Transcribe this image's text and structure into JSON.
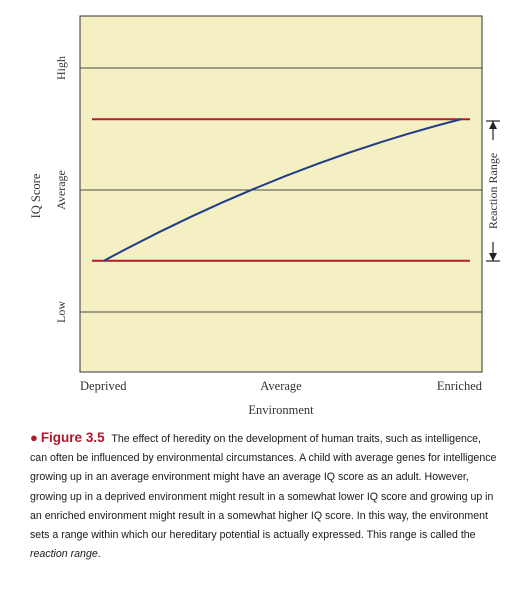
{
  "chart_data": {
    "type": "line",
    "xlabel": "Environment",
    "ylabel": "IQ Score",
    "x_categories": [
      "Deprived",
      "Average",
      "Enriched"
    ],
    "y_categories": [
      "Low",
      "Average",
      "High"
    ],
    "series": [
      {
        "values": [
          {
            "x": "Deprived",
            "y": -0.58
          },
          {
            "x": "Average",
            "y": 0.1
          },
          {
            "x": "Enriched",
            "y": 0.58
          }
        ]
      }
    ],
    "reference_lines": [
      0.58,
      -0.58
    ],
    "bracket_label": "Reaction Range",
    "colors": {
      "plot_background": "#f5f0c4",
      "curve": "#1f3e86",
      "reference_lines": "#b01e2e",
      "gridlines": "#4a4a3c"
    }
  },
  "caption": {
    "bullet": "●",
    "figure_label": "Figure 3.5",
    "text": "The effect of heredity on the development of human traits, such as intelligence, can often be influenced by environmental circumstances. A child with average genes for intelligence growing up in an average environment might have an average IQ score as an adult. However, growing up in a deprived environment might result in a somewhat lower IQ score and growing up in an enriched environment might result in a somewhat higher IQ score. In this way, the environment sets a range within which our hereditary potential is actually expressed. This range is called the",
    "term": "reaction range",
    "end": "."
  }
}
